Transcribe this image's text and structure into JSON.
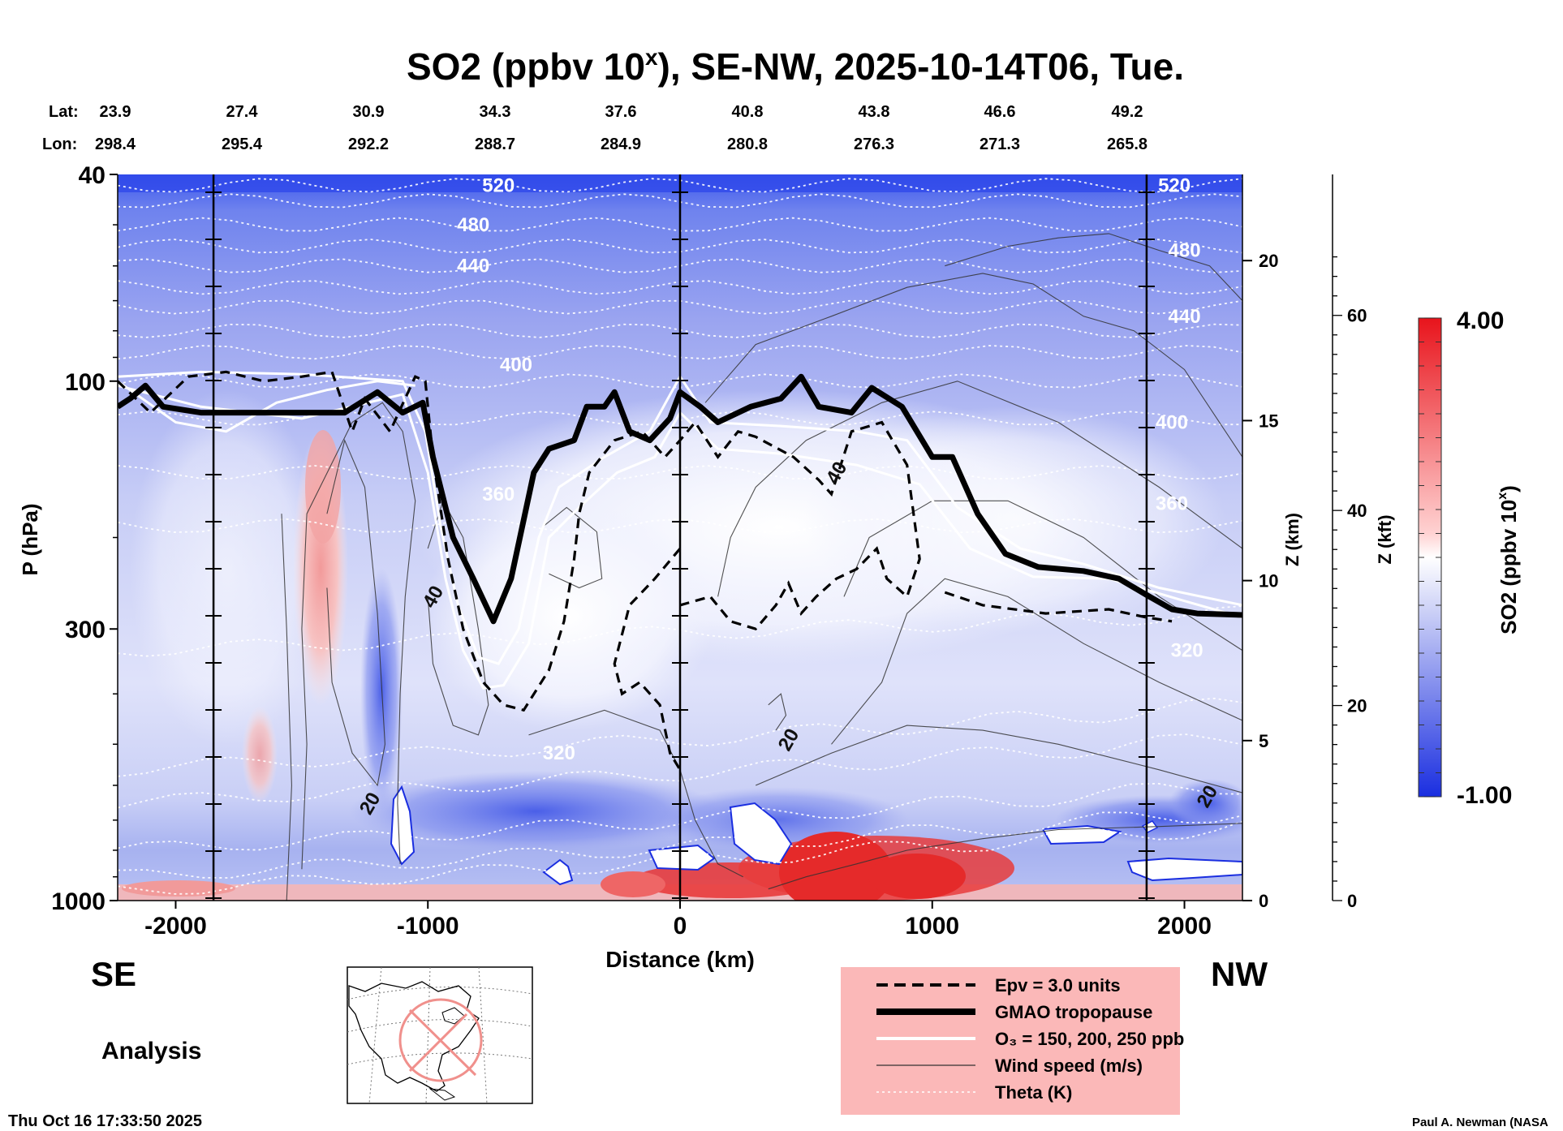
{
  "title": {
    "main": "SO2 (ppbv 10",
    "sup": "x",
    "rest": "), SE-NW, 2025-10-14T06, Tue."
  },
  "lat_label": "Lat:",
  "lon_label": "Lon:",
  "lat_values": [
    "23.9",
    "27.4",
    "30.9",
    "34.3",
    "37.6",
    "40.8",
    "43.8",
    "46.6",
    "49.2"
  ],
  "lon_values": [
    "298.4",
    "295.4",
    "292.2",
    "288.7",
    "284.9",
    "280.8",
    "276.3",
    "271.3",
    "265.8"
  ],
  "direction_left": "SE",
  "direction_right": "NW",
  "analysis_label": "Analysis",
  "timestamp": "Thu Oct 16 17:33:50 2025",
  "credit": "Paul A. Newman (NASA",
  "colorbar": {
    "max_label": "4.00",
    "min_label": "-1.00",
    "title_main": "SO2 (ppbv 10",
    "title_sup": "x",
    "title_end": ")",
    "color_high": "#e8141c",
    "color_mid": "#ffffff",
    "color_low": "#1a2ee0"
  },
  "legend": {
    "background": "#fbb8b8",
    "items": [
      {
        "style": "dashed",
        "label": "Epv = 3.0 units"
      },
      {
        "style": "thick",
        "label": "GMAO tropopause"
      },
      {
        "style": "white",
        "label": "O₃ = 150, 200, 250 ppb"
      },
      {
        "style": "thin",
        "label": "Wind speed (m/s)"
      },
      {
        "style": "dotted",
        "label": "Theta (K)"
      }
    ]
  },
  "chart_data": {
    "type": "heatmap",
    "xlabel": "Distance (km)",
    "ylabel": "P (hPa)",
    "x_ticks": [
      "-2000",
      "-1000",
      "0",
      "1000",
      "2000"
    ],
    "x_tick_values": [
      -2000,
      -1000,
      0,
      1000,
      2000
    ],
    "xlim": [
      -2230,
      2230
    ],
    "y_scale": "log",
    "y_ticks": [
      "40",
      "100",
      "300",
      "1000"
    ],
    "y_tick_values": [
      40,
      100,
      300,
      1000
    ],
    "ylim": [
      1000,
      40
    ],
    "z_km_label": "Z (km)",
    "z_km_ticks": [
      "0",
      "5",
      "10",
      "15",
      "20"
    ],
    "z_kft_label": "Z (kft)",
    "z_kft_ticks": [
      "0",
      "20",
      "40",
      "60"
    ],
    "vertical_markers_km": [
      -1850,
      0,
      1850
    ],
    "colorscale_range": [
      -1.0,
      4.0
    ],
    "theta_labels": [
      {
        "text": "520",
        "x": -720,
        "p": 42
      },
      {
        "text": "520",
        "x": 1960,
        "p": 42
      },
      {
        "text": "480",
        "x": -820,
        "p": 50
      },
      {
        "text": "480",
        "x": 2000,
        "p": 56
      },
      {
        "text": "440",
        "x": -820,
        "p": 60
      },
      {
        "text": "440",
        "x": 2000,
        "p": 75
      },
      {
        "text": "400",
        "x": -650,
        "p": 93
      },
      {
        "text": "400",
        "x": 1950,
        "p": 120
      },
      {
        "text": "360",
        "x": -720,
        "p": 165
      },
      {
        "text": "360",
        "x": 1950,
        "p": 172
      },
      {
        "text": "320",
        "x": 2010,
        "p": 330
      },
      {
        "text": "320",
        "x": -480,
        "p": 520
      }
    ],
    "wind_labels": [
      {
        "text": "40",
        "x": 620,
        "p": 150
      },
      {
        "text": "40",
        "x": -980,
        "p": 260
      },
      {
        "text": "20",
        "x": 430,
        "p": 490
      },
      {
        "text": "20",
        "x": -1230,
        "p": 650
      },
      {
        "text": "20",
        "x": 2090,
        "p": 630
      }
    ],
    "tropopause": [
      [
        -2230,
        112
      ],
      [
        -2180,
        108
      ],
      [
        -2120,
        102
      ],
      [
        -2050,
        112
      ],
      [
        -1900,
        115
      ],
      [
        -1600,
        115
      ],
      [
        -1330,
        115
      ],
      [
        -1200,
        105
      ],
      [
        -1100,
        115
      ],
      [
        -1020,
        110
      ],
      [
        -980,
        140
      ],
      [
        -900,
        200
      ],
      [
        -820,
        240
      ],
      [
        -740,
        290
      ],
      [
        -670,
        240
      ],
      [
        -580,
        150
      ],
      [
        -520,
        135
      ],
      [
        -420,
        130
      ],
      [
        -370,
        112
      ],
      [
        -300,
        112
      ],
      [
        -260,
        105
      ],
      [
        -200,
        125
      ],
      [
        -120,
        130
      ],
      [
        -40,
        118
      ],
      [
        0,
        105
      ],
      [
        80,
        112
      ],
      [
        150,
        120
      ],
      [
        280,
        112
      ],
      [
        400,
        108
      ],
      [
        480,
        98
      ],
      [
        550,
        112
      ],
      [
        680,
        115
      ],
      [
        760,
        103
      ],
      [
        880,
        112
      ],
      [
        1000,
        140
      ],
      [
        1080,
        140
      ],
      [
        1180,
        180
      ],
      [
        1290,
        215
      ],
      [
        1420,
        228
      ],
      [
        1600,
        232
      ],
      [
        1740,
        240
      ],
      [
        1850,
        258
      ],
      [
        1950,
        275
      ],
      [
        2050,
        280
      ],
      [
        2230,
        282
      ]
    ],
    "o3_contours": [
      [
        [
          -2230,
          98
        ],
        [
          -1900,
          96
        ],
        [
          -1500,
          97
        ],
        [
          -1100,
          100
        ],
        [
          -1010,
          125
        ],
        [
          -950,
          190
        ],
        [
          -880,
          270
        ],
        [
          -800,
          340
        ],
        [
          -720,
          350
        ],
        [
          -640,
          300
        ],
        [
          -560,
          200
        ],
        [
          -480,
          160
        ],
        [
          -300,
          140
        ],
        [
          -120,
          125
        ],
        [
          0,
          98
        ],
        [
          120,
          120
        ],
        [
          400,
          122
        ],
        [
          700,
          125
        ],
        [
          900,
          130
        ],
        [
          1100,
          175
        ],
        [
          1350,
          210
        ],
        [
          1600,
          225
        ],
        [
          1900,
          250
        ],
        [
          2230,
          270
        ]
      ],
      [
        [
          -2230,
          102
        ],
        [
          -1900,
          112
        ],
        [
          -1500,
          118
        ],
        [
          -1100,
          106
        ],
        [
          -1000,
          150
        ],
        [
          -930,
          240
        ],
        [
          -860,
          330
        ],
        [
          -780,
          390
        ],
        [
          -700,
          385
        ],
        [
          -600,
          320
        ],
        [
          -520,
          200
        ],
        [
          -400,
          175
        ],
        [
          -250,
          150
        ],
        [
          -100,
          140
        ],
        [
          0,
          115
        ],
        [
          150,
          135
        ],
        [
          400,
          138
        ],
        [
          700,
          145
        ],
        [
          950,
          158
        ],
        [
          1150,
          210
        ],
        [
          1400,
          238
        ],
        [
          1700,
          240
        ],
        [
          2000,
          265
        ],
        [
          2230,
          285
        ]
      ],
      [
        [
          -2230,
          100
        ],
        [
          -2000,
          120
        ],
        [
          -1800,
          125
        ],
        [
          -1600,
          110
        ],
        [
          -1400,
          104
        ],
        [
          -1200,
          100
        ],
        [
          -1050,
          102
        ]
      ]
    ],
    "epv_contours": [
      [
        [
          -2230,
          100
        ],
        [
          -2100,
          115
        ],
        [
          -1950,
          98
        ],
        [
          -1800,
          96
        ],
        [
          -1650,
          100
        ],
        [
          -1500,
          98
        ],
        [
          -1380,
          96
        ],
        [
          -1300,
          125
        ],
        [
          -1250,
          108
        ],
        [
          -1150,
          125
        ],
        [
          -1050,
          98
        ],
        [
          -1010,
          100
        ],
        [
          -980,
          140
        ],
        [
          -920,
          220
        ],
        [
          -860,
          300
        ],
        [
          -780,
          380
        ],
        [
          -700,
          420
        ],
        [
          -620,
          430
        ],
        [
          -520,
          360
        ],
        [
          -460,
          290
        ],
        [
          -420,
          220
        ],
        [
          -400,
          180
        ],
        [
          -360,
          150
        ],
        [
          -260,
          130
        ],
        [
          -150,
          125
        ],
        [
          -60,
          140
        ],
        [
          0,
          130
        ],
        [
          60,
          120
        ],
        [
          150,
          140
        ],
        [
          230,
          125
        ],
        [
          300,
          128
        ],
        [
          450,
          140
        ],
        [
          550,
          155
        ],
        [
          600,
          165
        ],
        [
          680,
          125
        ],
        [
          800,
          120
        ],
        [
          900,
          145
        ],
        [
          950,
          220
        ],
        [
          900,
          260
        ],
        [
          820,
          240
        ],
        [
          780,
          210
        ],
        [
          700,
          230
        ],
        [
          620,
          240
        ],
        [
          540,
          260
        ],
        [
          480,
          280
        ],
        [
          430,
          245
        ],
        [
          380,
          270
        ],
        [
          300,
          300
        ],
        [
          200,
          290
        ],
        [
          120,
          260
        ],
        [
          0,
          270
        ]
      ],
      [
        [
          0,
          210
        ],
        [
          -100,
          240
        ],
        [
          -200,
          270
        ],
        [
          -260,
          350
        ],
        [
          -230,
          400
        ],
        [
          -160,
          380
        ],
        [
          -80,
          420
        ],
        [
          -40,
          520
        ],
        [
          0,
          560
        ]
      ],
      [
        [
          1050,
          255
        ],
        [
          1200,
          270
        ],
        [
          1450,
          280
        ],
        [
          1700,
          275
        ],
        [
          1850,
          285
        ],
        [
          1950,
          290
        ]
      ]
    ],
    "wind_contours": [
      [
        [
          -1500,
          870
        ],
        [
          -1480,
          500
        ],
        [
          -1500,
          300
        ],
        [
          -1480,
          180
        ],
        [
          -1300,
          120
        ],
        [
          -1180,
          110
        ],
        [
          -1100,
          125
        ],
        [
          -1050,
          170
        ],
        [
          -1090,
          260
        ],
        [
          -1110,
          400
        ],
        [
          -1120,
          650
        ],
        [
          -1110,
          850
        ]
      ],
      [
        [
          -1000,
          210
        ],
        [
          -940,
          170
        ],
        [
          -860,
          200
        ],
        [
          -800,
          300
        ],
        [
          -760,
          420
        ],
        [
          -800,
          480
        ],
        [
          -900,
          460
        ],
        [
          -980,
          350
        ],
        [
          -1000,
          260
        ]
      ],
      [
        [
          -1400,
          180
        ],
        [
          -1330,
          130
        ],
        [
          -1250,
          160
        ],
        [
          -1200,
          280
        ],
        [
          -1170,
          500
        ],
        [
          -1200,
          600
        ],
        [
          -1300,
          520
        ],
        [
          -1380,
          380
        ],
        [
          -1400,
          250
        ]
      ],
      [
        [
          -540,
          190
        ],
        [
          -450,
          175
        ],
        [
          -330,
          195
        ],
        [
          -310,
          240
        ],
        [
          -400,
          250
        ],
        [
          -520,
          235
        ]
      ],
      [
        [
          -1560,
          1000
        ],
        [
          -1540,
          600
        ],
        [
          -1560,
          300
        ],
        [
          -1580,
          180
        ]
      ],
      [
        [
          -600,
          480
        ],
        [
          -300,
          430
        ],
        [
          -80,
          470
        ],
        [
          0,
          560
        ],
        [
          60,
          700
        ],
        [
          150,
          850
        ],
        [
          250,
          900
        ]
      ],
      [
        [
          2230,
          140
        ],
        [
          2000,
          95
        ],
        [
          1800,
          80
        ],
        [
          1600,
          75
        ],
        [
          1400,
          65
        ],
        [
          1200,
          62
        ],
        [
          900,
          66
        ],
        [
          600,
          75
        ],
        [
          300,
          85
        ],
        [
          100,
          110
        ]
      ],
      [
        [
          2230,
          70
        ],
        [
          2100,
          60
        ],
        [
          1900,
          56
        ],
        [
          1700,
          52
        ],
        [
          1500,
          53
        ],
        [
          1300,
          55
        ],
        [
          1050,
          60
        ]
      ],
      [
        [
          2230,
          210
        ],
        [
          1900,
          160
        ],
        [
          1500,
          120
        ],
        [
          1100,
          100
        ],
        [
          800,
          110
        ],
        [
          500,
          130
        ],
        [
          300,
          160
        ],
        [
          200,
          200
        ],
        [
          150,
          260
        ]
      ],
      [
        [
          2230,
          330
        ],
        [
          1900,
          260
        ],
        [
          1600,
          200
        ],
        [
          1300,
          170
        ],
        [
          1000,
          170
        ],
        [
          750,
          200
        ],
        [
          650,
          260
        ]
      ],
      [
        [
          2230,
          450
        ],
        [
          1900,
          380
        ],
        [
          1600,
          320
        ],
        [
          1300,
          260
        ],
        [
          1050,
          240
        ],
        [
          900,
          280
        ],
        [
          800,
          380
        ],
        [
          600,
          500
        ]
      ],
      [
        [
          2230,
          620
        ],
        [
          1900,
          560
        ],
        [
          1500,
          500
        ],
        [
          1200,
          470
        ],
        [
          900,
          460
        ],
        [
          600,
          520
        ],
        [
          300,
          600
        ]
      ],
      [
        [
          2230,
          710
        ],
        [
          1900,
          720
        ],
        [
          1500,
          730
        ],
        [
          1200,
          760
        ],
        [
          900,
          800
        ],
        [
          700,
          850
        ],
        [
          500,
          900
        ],
        [
          350,
          950
        ]
      ],
      [
        [
          350,
          420
        ],
        [
          400,
          400
        ],
        [
          420,
          440
        ],
        [
          380,
          470
        ]
      ]
    ],
    "theta_levels_p": [
      42,
      45,
      50,
      55,
      60,
      66,
      72,
      80,
      88,
      100,
      118,
      150,
      190,
      330,
      560,
      650,
      800,
      900,
      960
    ]
  }
}
